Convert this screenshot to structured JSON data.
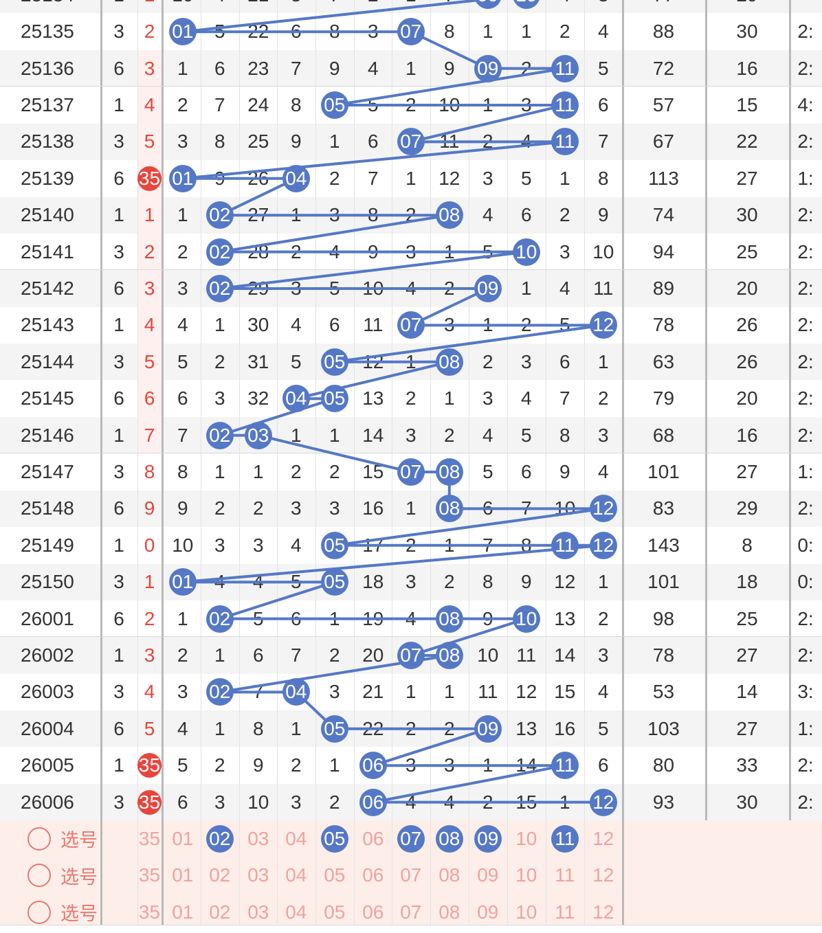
{
  "colors": {
    "ball": "#5578c6",
    "line": "#5578c6",
    "red_text": "#e8453c",
    "selector_bg": "#fdeeea",
    "selector_text": "#e8786e",
    "pick_text": "#f0a39c"
  },
  "top_partial_row": {
    "period": "25134",
    "cells": [
      "1",
      "1",
      "10",
      "4",
      "21",
      "5",
      "7",
      "2",
      "1",
      "7",
      "09",
      "10",
      "4",
      "3",
      "77",
      "29",
      ""
    ]
  },
  "rows": [
    {
      "period": "25135",
      "a": "3",
      "b": "2",
      "cells": [
        "01",
        "5",
        "22",
        "6",
        "8",
        "3",
        "07",
        "8",
        "1",
        "1",
        "2",
        "4"
      ],
      "sum": "88",
      "span": "30",
      "last": "2:"
    },
    {
      "period": "25136",
      "a": "6",
      "b": "3",
      "cells": [
        "1",
        "6",
        "23",
        "7",
        "9",
        "4",
        "1",
        "9",
        "09",
        "2",
        "11",
        "5"
      ],
      "sum": "72",
      "span": "16",
      "last": "2:"
    },
    {
      "period": "25137",
      "a": "1",
      "b": "4",
      "cells": [
        "2",
        "7",
        "24",
        "8",
        "05",
        "5",
        "2",
        "10",
        "1",
        "3",
        "11",
        "6"
      ],
      "sum": "57",
      "span": "15",
      "last": "4:"
    },
    {
      "period": "25138",
      "a": "3",
      "b": "5",
      "cells": [
        "3",
        "8",
        "25",
        "9",
        "1",
        "6",
        "07",
        "11",
        "2",
        "4",
        "11",
        "7"
      ],
      "sum": "67",
      "span": "22",
      "last": "2:"
    },
    {
      "period": "25139",
      "a": "6",
      "b": "35",
      "cells": [
        "01",
        "9",
        "26",
        "04",
        "2",
        "7",
        "1",
        "12",
        "3",
        "5",
        "1",
        "8"
      ],
      "sum": "113",
      "span": "27",
      "last": "1:"
    },
    {
      "period": "25140",
      "a": "1",
      "b": "1",
      "cells": [
        "1",
        "02",
        "27",
        "1",
        "3",
        "8",
        "2",
        "08",
        "4",
        "6",
        "2",
        "9"
      ],
      "sum": "74",
      "span": "30",
      "last": "2:"
    },
    {
      "period": "25141",
      "a": "3",
      "b": "2",
      "cells": [
        "2",
        "02",
        "28",
        "2",
        "4",
        "9",
        "3",
        "1",
        "5",
        "10",
        "3",
        "10"
      ],
      "sum": "94",
      "span": "25",
      "last": "2:"
    },
    {
      "period": "25142",
      "a": "6",
      "b": "3",
      "cells": [
        "3",
        "02",
        "29",
        "3",
        "5",
        "10",
        "4",
        "2",
        "09",
        "1",
        "4",
        "11"
      ],
      "sum": "89",
      "span": "20",
      "last": "2:"
    },
    {
      "period": "25143",
      "a": "1",
      "b": "4",
      "cells": [
        "4",
        "1",
        "30",
        "4",
        "6",
        "11",
        "07",
        "3",
        "1",
        "2",
        "5",
        "12"
      ],
      "sum": "78",
      "span": "26",
      "last": "2:"
    },
    {
      "period": "25144",
      "a": "3",
      "b": "5",
      "cells": [
        "5",
        "2",
        "31",
        "5",
        "05",
        "12",
        "1",
        "08",
        "2",
        "3",
        "6",
        "1"
      ],
      "sum": "63",
      "span": "26",
      "last": "2:"
    },
    {
      "period": "25145",
      "a": "6",
      "b": "6",
      "cells": [
        "6",
        "3",
        "32",
        "04",
        "05",
        "13",
        "2",
        "1",
        "3",
        "4",
        "7",
        "2"
      ],
      "sum": "79",
      "span": "20",
      "last": "2:"
    },
    {
      "period": "25146",
      "a": "1",
      "b": "7",
      "cells": [
        "7",
        "02",
        "03",
        "1",
        "1",
        "14",
        "3",
        "2",
        "4",
        "5",
        "8",
        "3"
      ],
      "sum": "68",
      "span": "16",
      "last": "2:"
    },
    {
      "period": "25147",
      "a": "3",
      "b": "8",
      "cells": [
        "8",
        "1",
        "1",
        "2",
        "2",
        "15",
        "07",
        "08",
        "5",
        "6",
        "9",
        "4"
      ],
      "sum": "101",
      "span": "27",
      "last": "1:"
    },
    {
      "period": "25148",
      "a": "6",
      "b": "9",
      "cells": [
        "9",
        "2",
        "2",
        "3",
        "3",
        "16",
        "1",
        "08",
        "6",
        "7",
        "10",
        "12"
      ],
      "sum": "83",
      "span": "29",
      "last": "2:"
    },
    {
      "period": "25149",
      "a": "1",
      "b": "0",
      "cells": [
        "10",
        "3",
        "3",
        "4",
        "05",
        "17",
        "2",
        "1",
        "7",
        "8",
        "11",
        "12"
      ],
      "sum": "143",
      "span": "8",
      "last": "0:"
    },
    {
      "period": "25150",
      "a": "3",
      "b": "1",
      "cells": [
        "01",
        "4",
        "4",
        "5",
        "05",
        "18",
        "3",
        "2",
        "8",
        "9",
        "12",
        "1"
      ],
      "sum": "101",
      "span": "18",
      "last": "0:"
    },
    {
      "period": "26001",
      "a": "6",
      "b": "2",
      "cells": [
        "1",
        "02",
        "5",
        "6",
        "1",
        "19",
        "4",
        "08",
        "9",
        "10",
        "13",
        "2"
      ],
      "sum": "98",
      "span": "25",
      "last": "2:"
    },
    {
      "period": "26002",
      "a": "1",
      "b": "3",
      "cells": [
        "2",
        "1",
        "6",
        "7",
        "2",
        "20",
        "07",
        "08",
        "10",
        "11",
        "14",
        "3"
      ],
      "sum": "78",
      "span": "27",
      "last": "2:"
    },
    {
      "period": "26003",
      "a": "3",
      "b": "4",
      "cells": [
        "3",
        "02",
        "7",
        "04",
        "3",
        "21",
        "1",
        "1",
        "11",
        "12",
        "15",
        "4"
      ],
      "sum": "53",
      "span": "14",
      "last": "3:"
    },
    {
      "period": "26004",
      "a": "6",
      "b": "5",
      "cells": [
        "4",
        "1",
        "8",
        "1",
        "05",
        "22",
        "2",
        "2",
        "09",
        "13",
        "16",
        "5"
      ],
      "sum": "103",
      "span": "27",
      "last": "1:"
    },
    {
      "period": "26005",
      "a": "1",
      "b": "35",
      "cells": [
        "5",
        "2",
        "9",
        "2",
        "1",
        "06",
        "3",
        "3",
        "1",
        "14",
        "11",
        "6"
      ],
      "sum": "80",
      "span": "33",
      "last": "2:"
    },
    {
      "period": "26006",
      "a": "3",
      "b": "35",
      "cells": [
        "6",
        "3",
        "10",
        "3",
        "2",
        "06",
        "4",
        "4",
        "2",
        "15",
        "1",
        "12"
      ],
      "sum": "93",
      "span": "30",
      "last": "2:"
    }
  ],
  "selector_rows": [
    {
      "label": "选号",
      "b": "35",
      "picks": [
        "01",
        "02",
        "03",
        "04",
        "05",
        "06",
        "07",
        "08",
        "09",
        "10",
        "11",
        "12"
      ],
      "selected": [
        "02",
        "05",
        "07",
        "08",
        "09",
        "11"
      ]
    },
    {
      "label": "选号",
      "b": "35",
      "picks": [
        "01",
        "02",
        "03",
        "04",
        "05",
        "06",
        "07",
        "08",
        "09",
        "10",
        "11",
        "12"
      ],
      "selected": []
    },
    {
      "label": "选号",
      "b": "35",
      "picks": [
        "01",
        "02",
        "03",
        "04",
        "05",
        "06",
        "07",
        "08",
        "09",
        "10",
        "11",
        "12"
      ],
      "selected": []
    }
  ]
}
